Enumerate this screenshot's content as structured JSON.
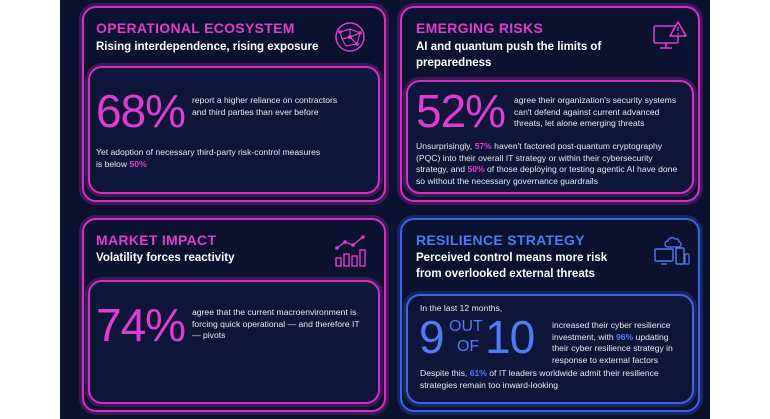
{
  "ecosystem": {
    "title": "OPERATIONAL ECOSYSTEM",
    "subtitle": "Rising interdependence, rising exposure",
    "stat": "68%",
    "stat_text": "report a higher reliance on contractors and third parties than ever before",
    "note_pre": "Yet adoption of necessary third-party risk-control measures is below ",
    "note_hl": "50%",
    "icon": "globe-network-icon"
  },
  "risks": {
    "title": "EMERGING RISKS",
    "subtitle": "AI and quantum push the limits of preparedness",
    "stat": "52%",
    "stat_text": "agree their organization's security systems can't defend against current advanced threats, let alone emerging threats",
    "note_1": "Unsurprisingly, ",
    "note_hl1": "57%",
    "note_2": " haven't factored post-quantum cryptography (PQC) into their overall IT strategy or within their cybersecurity strategy, and ",
    "note_hl2": "50%",
    "note_3": " of those deploying or testing agentic AI have done so without the necessary governance guardrails",
    "icon": "monitor-warning-icon"
  },
  "market": {
    "title": "MARKET IMPACT",
    "subtitle": "Volatility forces reactivity",
    "stat": "74%",
    "stat_text": "agree that the current macroenvironment is forcing quick operational — and therefore IT — pivots",
    "icon": "bar-trend-icon"
  },
  "resilience": {
    "title": "RESILIENCE STRATEGY",
    "subtitle": "Perceived control means more risk from overlooked external threats",
    "lead": "In the last 12 months,",
    "num_left": "9",
    "num_out": "OUT",
    "num_of": "OF",
    "num_right": "10",
    "stat_text_1": "increased their cyber resilience investment, with ",
    "stat_hl": "96%",
    "stat_text_2": " updating their cyber resilience strategy in response to external factors",
    "note_1": "Despite this, ",
    "note_hl": "61%",
    "note_2": " of IT leaders worldwide admit their resilience strategies remain too inward-looking",
    "icon": "cloud-devices-icon"
  },
  "colors": {
    "magenta": "#e23bd2",
    "blue": "#4f7bf5",
    "background": "#0b1230"
  }
}
